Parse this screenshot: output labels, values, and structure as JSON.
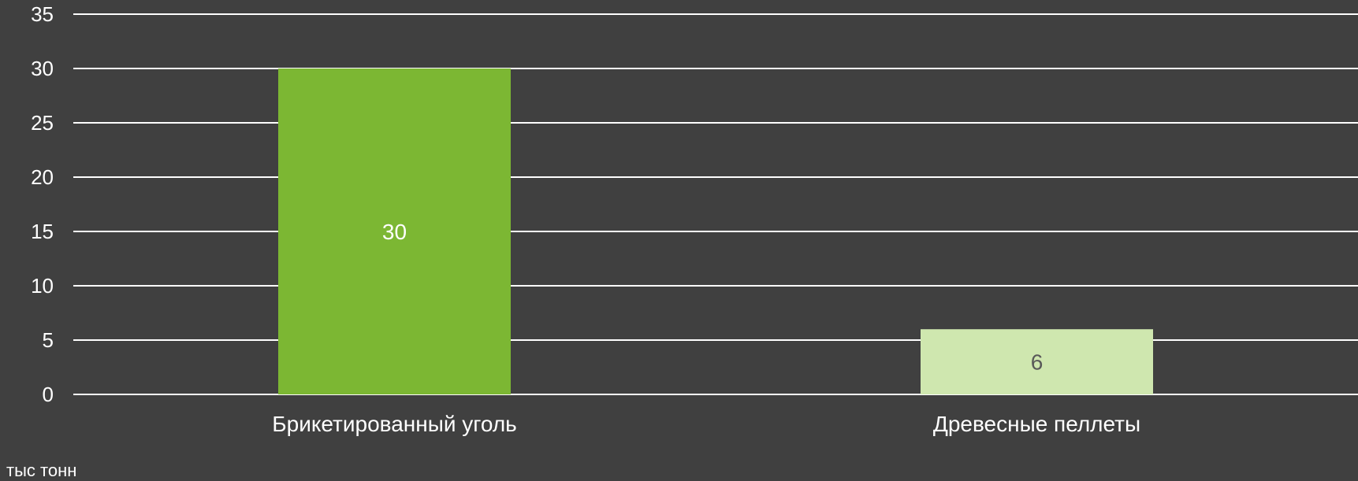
{
  "chart_data": {
    "type": "bar",
    "categories": [
      "Брикетированный уголь",
      "Древесные пеллеты"
    ],
    "values": [
      30,
      6
    ],
    "bar_colors": [
      "#7cb733",
      "#cfe7af"
    ],
    "data_label_colors": [
      "#ffffff",
      "#595959"
    ],
    "yticks": [
      0,
      5,
      10,
      15,
      20,
      25,
      30,
      35
    ],
    "ylim": [
      0,
      35
    ],
    "unit_label": "тыс тонн",
    "grid": true,
    "legend": "none"
  },
  "colors": {
    "background": "#404040",
    "gridline": "#ffffff",
    "text": "#ffffff"
  }
}
